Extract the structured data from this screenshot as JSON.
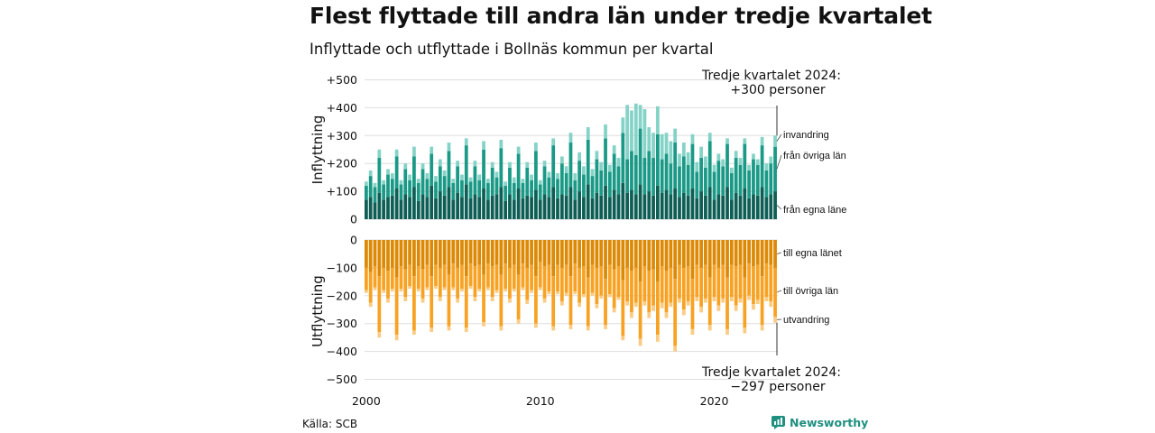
{
  "title": "Flest flyttade till andra län under tredje kvartalet",
  "subtitle": "Inflyttade och utflyttade i Bollnäs kommun per kvartal",
  "source": "Källa: SCB",
  "brand": "Newsworthy",
  "colors": {
    "in_egna": "#0e5e55",
    "in_ovriga": "#1a9986",
    "in_invandring": "#85d3c7",
    "ut_egna": "#dc8a06",
    "ut_ovriga": "#f7a223",
    "ut_utvandring": "#fbcb83",
    "grid": "#dddddd",
    "brand": "#1f8f80"
  },
  "chart_data": [
    {
      "type": "bar",
      "stacked": true,
      "ylabel": "Inflyttning",
      "ylim": [
        0,
        500
      ],
      "yticks": [
        0,
        100,
        200,
        300,
        400,
        500
      ],
      "ytick_labels": [
        "0",
        "+100",
        "+200",
        "+300",
        "+400",
        "+500"
      ],
      "x_start_year": 2000,
      "periods_per_year": 4,
      "xticks": [
        "2000",
        "2010",
        "2020"
      ],
      "annotation": [
        "Tredje kvartalet 2024:",
        "+300 personer"
      ],
      "series": [
        {
          "name": "från egna länet",
          "label": "från egna läne",
          "values": [
            70,
            80,
            60,
            95,
            70,
            80,
            85,
            110,
            70,
            90,
            80,
            115,
            65,
            90,
            80,
            120,
            75,
            100,
            85,
            115,
            70,
            95,
            80,
            125,
            75,
            90,
            80,
            110,
            70,
            85,
            90,
            115,
            65,
            90,
            70,
            110,
            75,
            85,
            80,
            105,
            70,
            90,
            80,
            115,
            75,
            90,
            85,
            115,
            70,
            100,
            80,
            125,
            75,
            95,
            85,
            120,
            80,
            105,
            90,
            130,
            95,
            105,
            90,
            125,
            90,
            100,
            85,
            120,
            95,
            105,
            90,
            110,
            80,
            95,
            85,
            110,
            75,
            100,
            85,
            115,
            70,
            90,
            85,
            115,
            70,
            95,
            85,
            110,
            75,
            90,
            85,
            115,
            80,
            90,
            100
          ]
        },
        {
          "name": "från övriga län",
          "label": "från övriga län",
          "values": [
            50,
            75,
            55,
            125,
            55,
            80,
            60,
            115,
            55,
            90,
            60,
            110,
            65,
            90,
            65,
            115,
            60,
            90,
            70,
            130,
            60,
            95,
            60,
            140,
            60,
            100,
            60,
            140,
            60,
            100,
            60,
            140,
            55,
            95,
            60,
            125,
            55,
            100,
            60,
            140,
            55,
            100,
            70,
            150,
            70,
            110,
            80,
            160,
            70,
            110,
            80,
            160,
            80,
            120,
            90,
            170,
            90,
            130,
            100,
            180,
            120,
            140,
            140,
            200,
            130,
            145,
            135,
            185,
            120,
            130,
            110,
            165,
            110,
            130,
            110,
            160,
            95,
            120,
            100,
            165,
            100,
            120,
            105,
            155,
            95,
            125,
            110,
            160,
            100,
            125,
            110,
            150,
            95,
            110,
            160
          ]
        },
        {
          "name": "invandring",
          "label": "invandring",
          "values": [
            15,
            20,
            15,
            30,
            15,
            20,
            20,
            25,
            15,
            20,
            20,
            35,
            15,
            20,
            20,
            25,
            20,
            25,
            20,
            30,
            15,
            20,
            20,
            25,
            15,
            20,
            20,
            30,
            15,
            20,
            20,
            30,
            15,
            20,
            20,
            25,
            15,
            20,
            20,
            30,
            15,
            20,
            20,
            25,
            20,
            25,
            25,
            35,
            25,
            30,
            30,
            45,
            25,
            30,
            30,
            50,
            25,
            30,
            30,
            55,
            195,
            145,
            185,
            85,
            175,
            85,
            90,
            100,
            90,
            75,
            80,
            50,
            45,
            50,
            45,
            35,
            35,
            40,
            40,
            30,
            25,
            25,
            25,
            20,
            20,
            25,
            25,
            20,
            20,
            20,
            20,
            30,
            25,
            25,
            40
          ]
        }
      ]
    },
    {
      "type": "bar",
      "stacked": true,
      "ylabel": "Utflyttning",
      "ylim": [
        -500,
        0
      ],
      "yticks": [
        0,
        -100,
        -200,
        -300,
        -400,
        -500
      ],
      "ytick_labels": [
        "0",
        "−100",
        "−200",
        "−300",
        "−400",
        "−500"
      ],
      "annotation": [
        "Tredje kvartalet 2024:",
        "−297 personer"
      ],
      "series": [
        {
          "name": "till egna länet",
          "label": "till egna länet",
          "values": [
            -100,
            -115,
            -95,
            -130,
            -100,
            -110,
            -100,
            -135,
            -95,
            -105,
            -90,
            -130,
            -95,
            -105,
            -90,
            -130,
            -90,
            -100,
            -90,
            -125,
            -85,
            -100,
            -90,
            -130,
            -85,
            -95,
            -90,
            -125,
            -85,
            -95,
            -90,
            -125,
            -85,
            -100,
            -90,
            -125,
            -85,
            -100,
            -90,
            -130,
            -80,
            -95,
            -90,
            -130,
            -90,
            -100,
            -90,
            -130,
            -85,
            -100,
            -95,
            -135,
            -90,
            -100,
            -95,
            -140,
            -90,
            -105,
            -95,
            -145,
            -100,
            -110,
            -100,
            -150,
            -95,
            -110,
            -105,
            -150,
            -95,
            -110,
            -100,
            -140,
            -90,
            -100,
            -95,
            -140,
            -90,
            -100,
            -90,
            -135,
            -90,
            -100,
            -90,
            -135,
            -90,
            -95,
            -90,
            -135,
            -85,
            -95,
            -90,
            -130,
            -85,
            -90,
            -100
          ]
        },
        {
          "name": "till övriga län",
          "label": "till övriga län",
          "values": [
            -80,
            -110,
            -75,
            -200,
            -80,
            -100,
            -75,
            -205,
            -80,
            -100,
            -75,
            -195,
            -80,
            -105,
            -80,
            -185,
            -75,
            -105,
            -80,
            -185,
            -85,
            -110,
            -85,
            -185,
            -80,
            -110,
            -85,
            -170,
            -85,
            -110,
            -90,
            -185,
            -90,
            -110,
            -85,
            -160,
            -85,
            -115,
            -90,
            -170,
            -90,
            -115,
            -95,
            -180,
            -95,
            -120,
            -100,
            -175,
            -100,
            -125,
            -100,
            -175,
            -100,
            -130,
            -105,
            -165,
            -105,
            -140,
            -110,
            -200,
            -120,
            -150,
            -125,
            -205,
            -125,
            -150,
            -130,
            -190,
            -130,
            -150,
            -125,
            -240,
            -120,
            -150,
            -125,
            -180,
            -115,
            -140,
            -120,
            -170,
            -115,
            -135,
            -120,
            -185,
            -115,
            -140,
            -120,
            -180,
            -115,
            -135,
            -125,
            -175,
            -120,
            -130,
            -175
          ]
        },
        {
          "name": "utvandring",
          "label": "utvandring",
          "values": [
            -10,
            -15,
            -10,
            -20,
            -10,
            -15,
            -10,
            -20,
            -10,
            -15,
            -10,
            -15,
            -10,
            -15,
            -10,
            -15,
            -10,
            -15,
            -10,
            -15,
            -10,
            -15,
            -10,
            -15,
            -10,
            -15,
            -10,
            -15,
            -10,
            -15,
            -10,
            -15,
            -10,
            -15,
            -10,
            -15,
            -10,
            -15,
            -10,
            -15,
            -10,
            -15,
            -10,
            -15,
            -10,
            -15,
            -10,
            -15,
            -10,
            -15,
            -10,
            -15,
            -10,
            -15,
            -10,
            -15,
            -10,
            -15,
            -10,
            -15,
            -15,
            -20,
            -15,
            -25,
            -15,
            -20,
            -20,
            -25,
            -20,
            -20,
            -15,
            -20,
            -15,
            -20,
            -15,
            -20,
            -15,
            -20,
            -15,
            -20,
            -15,
            -20,
            -15,
            -20,
            -15,
            -20,
            -15,
            -20,
            -15,
            -20,
            -15,
            -20,
            -15,
            -20,
            -22
          ]
        }
      ]
    }
  ]
}
